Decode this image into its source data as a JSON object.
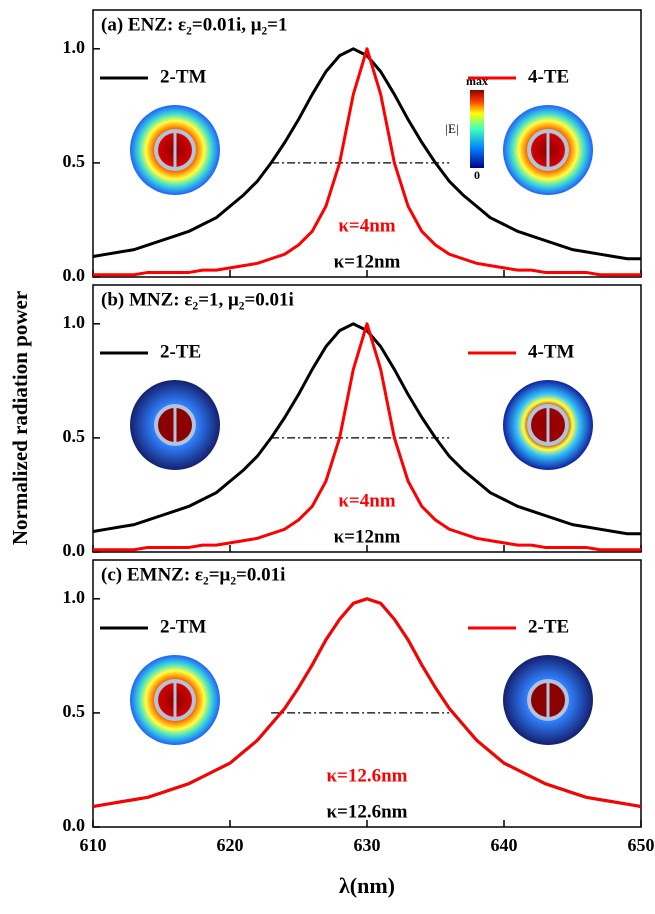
{
  "shared": {
    "xlabel": "λ(nm)",
    "ylabel": "Normalized radiation power"
  },
  "chart_data": [
    {
      "type": "line",
      "title": "(a)  ENZ:  ε₂=0.01i, μ₂=1",
      "xlim": [
        610,
        650
      ],
      "ylim": [
        0,
        1.17
      ],
      "xticks": [
        610,
        620,
        630,
        640,
        650
      ],
      "yticks": [
        {
          "value": 0,
          "label": "0.0"
        },
        0.5,
        {
          "value": 1,
          "label": "1.0"
        }
      ],
      "series": [
        {
          "name": "2-TM",
          "color": "#000000",
          "x": [
            610,
            611,
            612,
            613,
            614,
            615,
            616,
            617,
            618,
            619,
            620,
            621,
            622,
            623,
            624,
            625,
            626,
            627,
            628,
            629,
            630,
            631,
            632,
            633,
            634,
            635,
            636,
            637,
            638,
            639,
            640,
            641,
            642,
            643,
            644,
            645,
            646,
            647,
            648,
            649,
            650
          ],
          "values": [
            0.09,
            0.1,
            0.11,
            0.12,
            0.14,
            0.16,
            0.18,
            0.2,
            0.23,
            0.26,
            0.31,
            0.36,
            0.42,
            0.5,
            0.59,
            0.69,
            0.8,
            0.9,
            0.97,
            1.0,
            0.97,
            0.9,
            0.8,
            0.69,
            0.59,
            0.5,
            0.42,
            0.36,
            0.31,
            0.26,
            0.23,
            0.2,
            0.18,
            0.16,
            0.14,
            0.12,
            0.11,
            0.1,
            0.09,
            0.08,
            0.08
          ]
        },
        {
          "name": "4-TE",
          "color": "#ff0000",
          "x": [
            610,
            611,
            612,
            613,
            614,
            615,
            616,
            617,
            618,
            619,
            620,
            621,
            622,
            623,
            624,
            625,
            626,
            627,
            628,
            629,
            630,
            631,
            632,
            633,
            634,
            635,
            636,
            637,
            638,
            639,
            640,
            641,
            642,
            643,
            644,
            645,
            646,
            647,
            648,
            649,
            650
          ],
          "values": [
            0.01,
            0.01,
            0.01,
            0.01,
            0.02,
            0.02,
            0.02,
            0.02,
            0.03,
            0.03,
            0.04,
            0.05,
            0.06,
            0.08,
            0.1,
            0.14,
            0.2,
            0.31,
            0.5,
            0.8,
            1.0,
            0.8,
            0.5,
            0.31,
            0.2,
            0.14,
            0.1,
            0.08,
            0.06,
            0.05,
            0.04,
            0.03,
            0.03,
            0.02,
            0.02,
            0.02,
            0.02,
            0.01,
            0.01,
            0.01,
            0.01
          ]
        }
      ],
      "fwhm_line": {
        "x": [
          623,
          636
        ],
        "y": 0.5
      },
      "annotations": [
        "κ=4nm",
        "κ=12nm"
      ],
      "colorbar": {
        "max": "max",
        "name": "|E|",
        "min": "0"
      }
    },
    {
      "type": "line",
      "title": "(b)  MNZ:  ε₂=1, μ₂=0.01i",
      "xlim": [
        610,
        650
      ],
      "ylim": [
        0,
        1.17
      ],
      "xticks": [
        610,
        620,
        630,
        640,
        650
      ],
      "yticks": [
        {
          "value": 0,
          "label": "0.0"
        },
        0.5,
        {
          "value": 1,
          "label": "1.0"
        }
      ],
      "series": [
        {
          "name": "2-TE",
          "color": "#000000",
          "x": [
            610,
            611,
            612,
            613,
            614,
            615,
            616,
            617,
            618,
            619,
            620,
            621,
            622,
            623,
            624,
            625,
            626,
            627,
            628,
            629,
            630,
            631,
            632,
            633,
            634,
            635,
            636,
            637,
            638,
            639,
            640,
            641,
            642,
            643,
            644,
            645,
            646,
            647,
            648,
            649,
            650
          ],
          "values": [
            0.09,
            0.1,
            0.11,
            0.12,
            0.14,
            0.16,
            0.18,
            0.2,
            0.23,
            0.26,
            0.31,
            0.36,
            0.42,
            0.5,
            0.59,
            0.69,
            0.8,
            0.9,
            0.97,
            1.0,
            0.97,
            0.9,
            0.8,
            0.69,
            0.59,
            0.5,
            0.42,
            0.36,
            0.31,
            0.26,
            0.23,
            0.2,
            0.18,
            0.16,
            0.14,
            0.12,
            0.11,
            0.1,
            0.09,
            0.08,
            0.08
          ]
        },
        {
          "name": "4-TM",
          "color": "#ff0000",
          "x": [
            610,
            611,
            612,
            613,
            614,
            615,
            616,
            617,
            618,
            619,
            620,
            621,
            622,
            623,
            624,
            625,
            626,
            627,
            628,
            629,
            630,
            631,
            632,
            633,
            634,
            635,
            636,
            637,
            638,
            639,
            640,
            641,
            642,
            643,
            644,
            645,
            646,
            647,
            648,
            649,
            650
          ],
          "values": [
            0.01,
            0.01,
            0.01,
            0.01,
            0.02,
            0.02,
            0.02,
            0.02,
            0.03,
            0.03,
            0.04,
            0.05,
            0.06,
            0.08,
            0.1,
            0.14,
            0.2,
            0.31,
            0.5,
            0.8,
            1.0,
            0.8,
            0.5,
            0.31,
            0.2,
            0.14,
            0.1,
            0.08,
            0.06,
            0.05,
            0.04,
            0.03,
            0.03,
            0.02,
            0.02,
            0.02,
            0.02,
            0.01,
            0.01,
            0.01,
            0.01
          ]
        }
      ],
      "fwhm_line": {
        "x": [
          623,
          636
        ],
        "y": 0.5
      },
      "annotations": [
        "κ=4nm",
        "κ=12nm"
      ]
    },
    {
      "type": "line",
      "title": "(c)  EMNZ:  ε₂=μ₂=0.01i",
      "xlim": [
        610,
        650
      ],
      "ylim": [
        0,
        1.17
      ],
      "xticks": [
        610,
        620,
        630,
        640,
        650
      ],
      "yticks": [
        {
          "value": 0,
          "label": "0.0"
        },
        0.5,
        {
          "value": 1,
          "label": "1.0"
        }
      ],
      "series": [
        {
          "name": "2-TM",
          "color": "#000000",
          "x": [
            610,
            611,
            612,
            613,
            614,
            615,
            616,
            617,
            618,
            619,
            620,
            621,
            622,
            623,
            624,
            625,
            626,
            627,
            628,
            629,
            630,
            631,
            632,
            633,
            634,
            635,
            636,
            637,
            638,
            639,
            640,
            641,
            642,
            643,
            644,
            645,
            646,
            647,
            648,
            649,
            650
          ],
          "values": [
            0.09,
            0.1,
            0.11,
            0.12,
            0.13,
            0.15,
            0.17,
            0.19,
            0.22,
            0.25,
            0.28,
            0.33,
            0.38,
            0.45,
            0.52,
            0.61,
            0.71,
            0.82,
            0.91,
            0.98,
            1.0,
            0.98,
            0.91,
            0.82,
            0.71,
            0.61,
            0.52,
            0.45,
            0.38,
            0.33,
            0.28,
            0.25,
            0.22,
            0.19,
            0.17,
            0.15,
            0.13,
            0.12,
            0.11,
            0.1,
            0.09
          ]
        },
        {
          "name": "2-TE",
          "color": "#ff0000",
          "x": [
            610,
            611,
            612,
            613,
            614,
            615,
            616,
            617,
            618,
            619,
            620,
            621,
            622,
            623,
            624,
            625,
            626,
            627,
            628,
            629,
            630,
            631,
            632,
            633,
            634,
            635,
            636,
            637,
            638,
            639,
            640,
            641,
            642,
            643,
            644,
            645,
            646,
            647,
            648,
            649,
            650
          ],
          "values": [
            0.09,
            0.1,
            0.11,
            0.12,
            0.13,
            0.15,
            0.17,
            0.19,
            0.22,
            0.25,
            0.28,
            0.33,
            0.38,
            0.45,
            0.52,
            0.61,
            0.71,
            0.82,
            0.91,
            0.98,
            1.0,
            0.98,
            0.91,
            0.82,
            0.71,
            0.61,
            0.52,
            0.45,
            0.38,
            0.33,
            0.28,
            0.25,
            0.22,
            0.19,
            0.17,
            0.15,
            0.13,
            0.12,
            0.11,
            0.1,
            0.09
          ]
        }
      ],
      "fwhm_line": {
        "x": [
          623,
          636
        ],
        "y": 0.5
      },
      "annotations": [
        "κ=12.6nm",
        "κ=12.6nm"
      ]
    }
  ]
}
